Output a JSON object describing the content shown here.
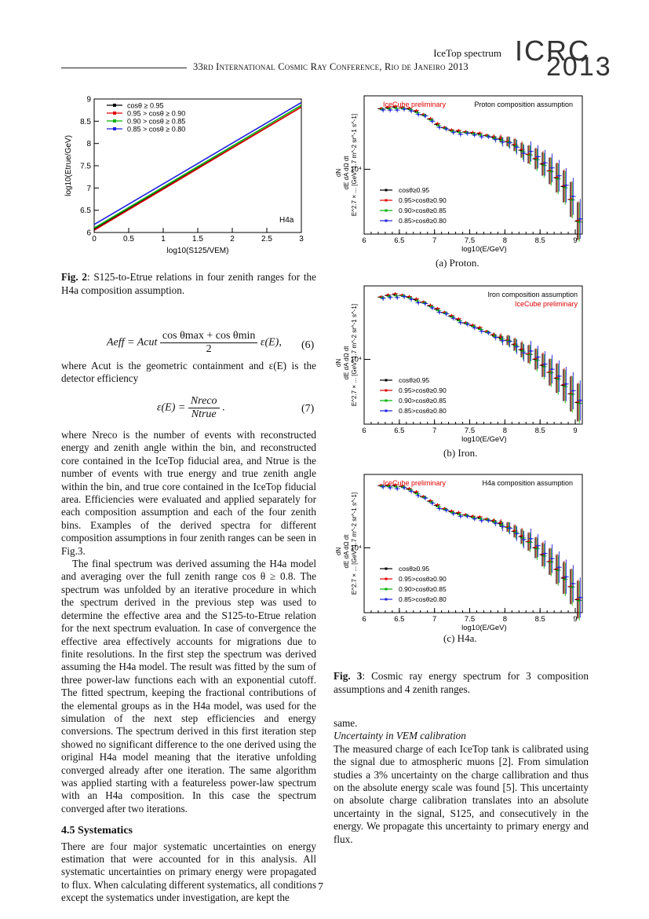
{
  "header": {
    "right_title": "IceTop spectrum",
    "conference": "33rd International Cosmic Ray Conference, Rio de Janeiro 2013",
    "logo_top": "ICRC",
    "logo_bottom": "2013"
  },
  "fig2": {
    "caption_label": "Fig. 2",
    "caption_text": ": S125-to-Etrue relations in four zenith ranges for the H4a composition assumption.",
    "chart_data": {
      "type": "line",
      "xlabel": "log10(S125/VEM)",
      "ylabel": "log10(Etrue/GeV)",
      "xlim": [
        0,
        3
      ],
      "ylim": [
        6,
        9
      ],
      "xticks": [
        "0",
        "0.5",
        "1",
        "1.5",
        "2",
        "2.5",
        "3"
      ],
      "yticks": [
        "6",
        "6.5",
        "7",
        "7.5",
        "8",
        "8.5",
        "9"
      ],
      "annotation": "H4a",
      "legend_position": "top-left",
      "series": [
        {
          "name": "cosθ ≥ 0.95",
          "color": "#000000",
          "x": [
            0,
            3
          ],
          "y": [
            6.07,
            8.82
          ]
        },
        {
          "name": "0.95 > cosθ ≥ 0.90",
          "color": "#e00000",
          "x": [
            0,
            3
          ],
          "y": [
            6.05,
            8.82
          ]
        },
        {
          "name": "0.90 > cosθ ≥ 0.85",
          "color": "#00b000",
          "x": [
            0,
            3
          ],
          "y": [
            6.1,
            8.86
          ]
        },
        {
          "name": "0.85 > cosθ ≥ 0.80",
          "color": "#2020e0",
          "x": [
            0,
            3
          ],
          "y": [
            6.18,
            8.92
          ]
        }
      ]
    }
  },
  "body_left": {
    "p1": "where Acut is the geometric containment and ε(E) is the detector efficiency",
    "p2": "where Nreco is the number of events with reconstructed energy and zenith angle within the bin, and reconstructed core contained in the IceTop fiducial area, and Ntrue is the number of events with true energy and true zenith angle within the bin, and true core contained in the IceTop fiducial area. Efficiencies were evaluated and applied separately for each composition assumption and each of the four zenith bins. Examples of the derived spectra for different composition assumptions in four zenith ranges can be seen in Fig.3.",
    "p3": "The final spectrum was derived assuming the H4a model and averaging over the full zenith range cos θ ≥ 0.8. The spectrum was unfolded by an iterative procedure in which the spectrum derived in the previous step was used to determine the effective area and the S125-to-Etrue relation for the next spectrum evaluation. In case of convergence the effective area effectively accounts for migrations due to finite resolutions. In the first step the spectrum was derived assuming the H4a model. The result was fitted by the sum of three power-law functions each with an exponential cutoff. The fitted spectrum, keeping the fractional contributions of the elemental groups as in the H4a model, was used for the simulation of the next step efficiencies and energy conversions. The spectrum derived in this first iteration step showed no significant difference to the one derived using the original H4a model meaning that the iterative unfolding converged already after one iteration. The same algorithm was applied starting with a featureless power-law spectrum with an H4a composition. In this case the spectrum converged after two iterations.",
    "section": "4.5   Systematics",
    "p4": "There are four major systematic uncertainties on energy estimation that were accounted for in this analysis. All systematic uncertainties on primary energy were propagated to flux. When calculating different systematics, all conditions except the systematics under investigation, are kept the"
  },
  "equations": {
    "eq6_lhs": "Aeff = Acut",
    "eq6_num": "cos θmax + cos θmin",
    "eq6_den": "2",
    "eq6_rhs": "ε(E),",
    "eq6_no": "(6)",
    "eq7_lhs": "ε(E) =",
    "eq7_num": "Nreco",
    "eq7_den": "Ntrue",
    "eq7_rhs": ".",
    "eq7_no": "(7)"
  },
  "fig3": {
    "common": {
      "xlabel": "log10(E/GeV)",
      "ylabel_top": "dN",
      "ylabel_bottom": "dE dA dΩ dt",
      "ylabel_units": "E^2.7 × ... [GeV^1.7 m^-2 sr^-1 s^-1]",
      "xticks": [
        "6",
        "6.5",
        "7",
        "7.5",
        "8",
        "8.5",
        "9"
      ],
      "ytick": "10⁴",
      "legend": [
        "cosθ≥0.95",
        "0.95>cosθ≥0.90",
        "0.90>cosθ≥0.85",
        "0.85>cosθ≥0.80"
      ],
      "colors": [
        "#000000",
        "#e00000",
        "#00b000",
        "#2020e0"
      ]
    },
    "panels": [
      {
        "title": "Proton composition assumption",
        "prelim": "IceCube preliminary",
        "subcaption": "(a) Proton.",
        "chart_data": {
          "type": "scatter",
          "xlim": [
            6,
            9.1
          ],
          "ylim_log10": [
            3.25,
            4.85
          ],
          "x": [
            6.25,
            6.35,
            6.45,
            6.55,
            6.65,
            6.75,
            6.85,
            6.95,
            7.05,
            7.15,
            7.25,
            7.35,
            7.45,
            7.55,
            7.65,
            7.75,
            7.85,
            7.95,
            8.05,
            8.15,
            8.25,
            8.35,
            8.45,
            8.55,
            8.65,
            8.75,
            8.85,
            8.95,
            9.05
          ],
          "y": [
            4.7,
            4.71,
            4.72,
            4.71,
            4.7,
            4.67,
            4.63,
            4.58,
            4.52,
            4.48,
            4.45,
            4.44,
            4.43,
            4.42,
            4.41,
            4.39,
            4.37,
            4.35,
            4.32,
            4.28,
            4.22,
            4.17,
            4.12,
            4.06,
            3.98,
            3.9,
            3.8,
            3.65,
            3.4
          ]
        }
      },
      {
        "title": "Iron composition assumption",
        "prelim": "IceCube preliminary",
        "subcaption": "(b) Iron.",
        "chart_data": {
          "type": "scatter",
          "xlim": [
            6,
            9.1
          ],
          "ylim_log10": [
            3.25,
            4.85
          ],
          "x": [
            6.25,
            6.35,
            6.45,
            6.55,
            6.65,
            6.75,
            6.85,
            6.95,
            7.05,
            7.15,
            7.25,
            7.35,
            7.45,
            7.55,
            7.65,
            7.75,
            7.85,
            7.95,
            8.05,
            8.15,
            8.25,
            8.35,
            8.45,
            8.55,
            8.65,
            8.75,
            8.85,
            8.95,
            9.05
          ],
          "y": [
            4.72,
            4.74,
            4.75,
            4.74,
            4.72,
            4.69,
            4.66,
            4.62,
            4.58,
            4.54,
            4.5,
            4.46,
            4.42,
            4.39,
            4.36,
            4.32,
            4.28,
            4.25,
            4.22,
            4.17,
            4.11,
            4.06,
            4.0,
            3.93,
            3.85,
            3.78,
            3.7,
            3.6,
            3.5
          ]
        }
      },
      {
        "title": "H4a composition assumption",
        "prelim": "IceCube preliminary",
        "subcaption": "(c) H4a.",
        "chart_data": {
          "type": "scatter",
          "xlim": [
            6,
            9.1
          ],
          "ylim_log10": [
            3.25,
            4.85
          ],
          "x": [
            6.25,
            6.35,
            6.45,
            6.55,
            6.65,
            6.75,
            6.85,
            6.95,
            7.05,
            7.15,
            7.25,
            7.35,
            7.45,
            7.55,
            7.65,
            7.75,
            7.85,
            7.95,
            8.05,
            8.15,
            8.25,
            8.35,
            8.45,
            8.55,
            8.65,
            8.75,
            8.85,
            8.95,
            9.05
          ],
          "y": [
            4.72,
            4.72,
            4.72,
            4.71,
            4.68,
            4.64,
            4.59,
            4.54,
            4.49,
            4.45,
            4.42,
            4.4,
            4.38,
            4.36,
            4.35,
            4.33,
            4.31,
            4.28,
            4.24,
            4.19,
            4.13,
            4.07,
            4.0,
            3.92,
            3.84,
            3.75,
            3.65,
            3.55,
            3.4
          ]
        }
      }
    ],
    "caption_label": "Fig. 3",
    "caption_text": ": Cosmic ray energy spectrum for 3 composition assumptions and 4 zenith ranges."
  },
  "body_right": {
    "p1": "same.",
    "subsection": "Uncertainty in VEM calibration",
    "p2": "The measured charge of each IceTop tank is calibrated using the signal due to atmospheric muons [2]. From simulation studies a 3% uncertainty on the charge callibration and thus on the absolute energy scale was found [5]. This uncertainty on absolute charge calibration translates into an absolute uncertainty in the signal, S125, and consecutively in the energy. We propagate this uncertainty to primary energy and flux."
  },
  "page_number": "7"
}
